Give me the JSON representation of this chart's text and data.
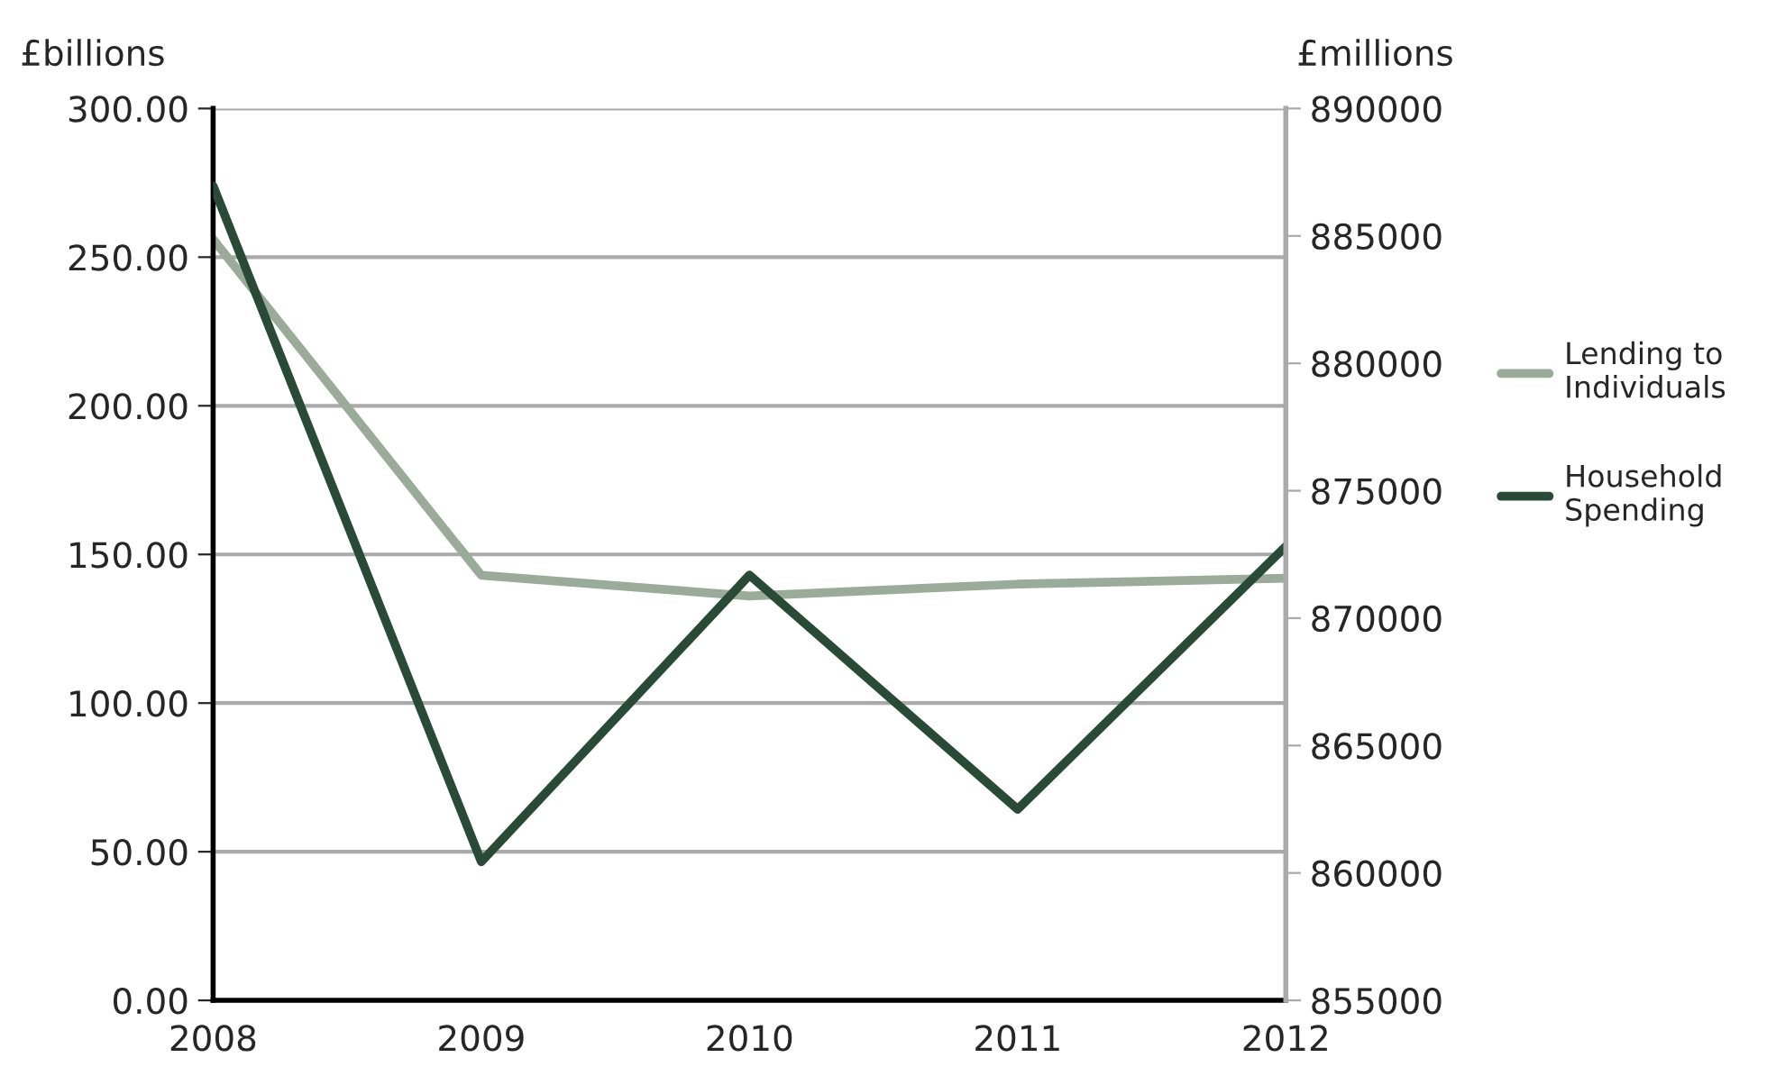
{
  "chart_data": {
    "type": "line",
    "ylabel": "£billions",
    "y2label": "£millions",
    "x": [
      2008,
      2009,
      2010,
      2011,
      2012
    ],
    "xlim": [
      2008,
      2012
    ],
    "xticks": [
      2008,
      2009,
      2010,
      2011,
      2012
    ],
    "ylim": [
      0,
      300
    ],
    "yticks": [
      {
        "value": 0,
        "label": "0.00"
      },
      {
        "value": 50,
        "label": "50.00"
      },
      {
        "value": 100,
        "label": "100.00"
      },
      {
        "value": 150,
        "label": "150.00"
      },
      {
        "value": 200,
        "label": "200.00"
      },
      {
        "value": 250,
        "label": "250.00"
      },
      {
        "value": 300,
        "label": "300.00"
      }
    ],
    "y2lim": [
      855000,
      890000
    ],
    "y2ticks": [
      855000,
      860000,
      865000,
      870000,
      875000,
      880000,
      885000,
      890000
    ],
    "grid": "y",
    "legend": "right",
    "marker": "none",
    "line_style": "solid",
    "series": [
      {
        "name": "Lending to Individuals",
        "color": "#9aab9a",
        "values": [
          256,
          143,
          136,
          140,
          142
        ]
      },
      {
        "name": "Household Spending",
        "color": "#2a4a38",
        "axis": "y2",
        "values": [
          886960,
          860440,
          871690,
          862500,
          872820
        ]
      }
    ]
  }
}
